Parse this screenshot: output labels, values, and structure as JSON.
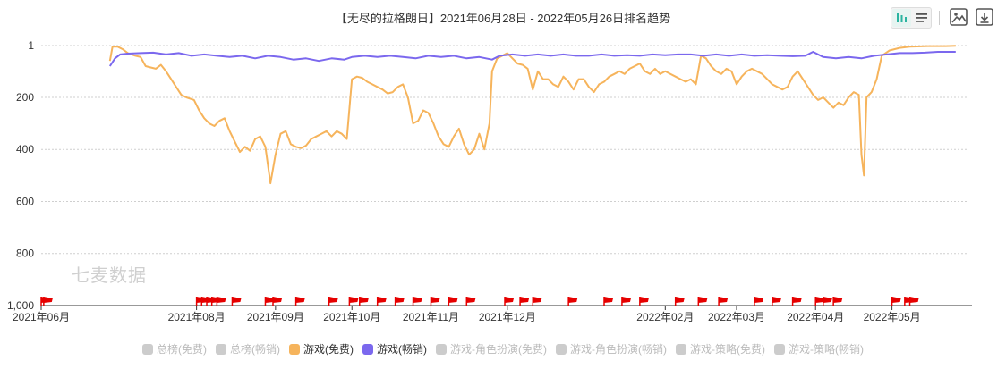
{
  "chart_data": {
    "type": "line",
    "title": "【无尽的拉格朗日】2021年06月28日 - 2022年05月26日排名趋势",
    "ylim": [
      1,
      1000
    ],
    "y_reversed": true,
    "y_ticks": [
      "1",
      "200",
      "400",
      "600",
      "800",
      "1,000"
    ],
    "y_tick_values": [
      1,
      200,
      400,
      600,
      800,
      1000
    ],
    "x_start": "2021-06-01",
    "x_end": "2022-05-31",
    "x_ticks": [
      {
        "label": "2021年06月",
        "date": "2021-06-01"
      },
      {
        "label": "2021年08月",
        "date": "2021-08-01"
      },
      {
        "label": "2021年09月",
        "date": "2021-09-01"
      },
      {
        "label": "2021年10月",
        "date": "2021-10-01"
      },
      {
        "label": "2021年11月",
        "date": "2021-11-01"
      },
      {
        "label": "2021年12月",
        "date": "2021-12-01"
      },
      {
        "label": "2022年02月",
        "date": "2022-02-01"
      },
      {
        "label": "2022年03月",
        "date": "2022-03-01"
      },
      {
        "label": "2022年04月",
        "date": "2022-04-01"
      },
      {
        "label": "2022年05月",
        "date": "2022-05-01"
      }
    ],
    "grid": true,
    "legend_position": "bottom",
    "series": [
      {
        "name": "游戏(免费)",
        "color": "#f6b45c",
        "points": [
          [
            "2021-06-28",
            60
          ],
          [
            "2021-06-29",
            5
          ],
          [
            "2021-07-01",
            5
          ],
          [
            "2021-07-03",
            15
          ],
          [
            "2021-07-05",
            30
          ],
          [
            "2021-07-08",
            40
          ],
          [
            "2021-07-10",
            45
          ],
          [
            "2021-07-12",
            80
          ],
          [
            "2021-07-14",
            85
          ],
          [
            "2021-07-16",
            90
          ],
          [
            "2021-07-18",
            75
          ],
          [
            "2021-07-20",
            100
          ],
          [
            "2021-07-22",
            130
          ],
          [
            "2021-07-24",
            160
          ],
          [
            "2021-07-26",
            190
          ],
          [
            "2021-07-28",
            200
          ],
          [
            "2021-07-31",
            210
          ],
          [
            "2021-08-02",
            250
          ],
          [
            "2021-08-04",
            280
          ],
          [
            "2021-08-06",
            300
          ],
          [
            "2021-08-08",
            310
          ],
          [
            "2021-08-10",
            290
          ],
          [
            "2021-08-12",
            280
          ],
          [
            "2021-08-14",
            330
          ],
          [
            "2021-08-16",
            370
          ],
          [
            "2021-08-18",
            410
          ],
          [
            "2021-08-20",
            390
          ],
          [
            "2021-08-22",
            405
          ],
          [
            "2021-08-24",
            360
          ],
          [
            "2021-08-26",
            350
          ],
          [
            "2021-08-28",
            390
          ],
          [
            "2021-08-30",
            530
          ],
          [
            "2021-09-01",
            420
          ],
          [
            "2021-09-03",
            340
          ],
          [
            "2021-09-05",
            330
          ],
          [
            "2021-09-07",
            380
          ],
          [
            "2021-09-09",
            390
          ],
          [
            "2021-09-11",
            395
          ],
          [
            "2021-09-13",
            385
          ],
          [
            "2021-09-15",
            360
          ],
          [
            "2021-09-17",
            350
          ],
          [
            "2021-09-19",
            340
          ],
          [
            "2021-09-21",
            330
          ],
          [
            "2021-09-23",
            350
          ],
          [
            "2021-09-25",
            330
          ],
          [
            "2021-09-27",
            340
          ],
          [
            "2021-09-29",
            360
          ],
          [
            "2021-10-01",
            130
          ],
          [
            "2021-10-03",
            120
          ],
          [
            "2021-10-05",
            125
          ],
          [
            "2021-10-07",
            140
          ],
          [
            "2021-10-09",
            150
          ],
          [
            "2021-10-11",
            160
          ],
          [
            "2021-10-13",
            170
          ],
          [
            "2021-10-15",
            185
          ],
          [
            "2021-10-17",
            180
          ],
          [
            "2021-10-19",
            160
          ],
          [
            "2021-10-21",
            150
          ],
          [
            "2021-10-23",
            200
          ],
          [
            "2021-10-25",
            300
          ],
          [
            "2021-10-27",
            290
          ],
          [
            "2021-10-29",
            250
          ],
          [
            "2021-10-31",
            260
          ],
          [
            "2021-11-02",
            300
          ],
          [
            "2021-11-04",
            350
          ],
          [
            "2021-11-06",
            380
          ],
          [
            "2021-11-08",
            390
          ],
          [
            "2021-11-10",
            350
          ],
          [
            "2021-11-12",
            320
          ],
          [
            "2021-11-14",
            380
          ],
          [
            "2021-11-16",
            420
          ],
          [
            "2021-11-18",
            400
          ],
          [
            "2021-11-20",
            340
          ],
          [
            "2021-11-22",
            400
          ],
          [
            "2021-11-24",
            300
          ],
          [
            "2021-11-25",
            100
          ],
          [
            "2021-11-27",
            50
          ],
          [
            "2021-11-29",
            40
          ],
          [
            "2021-12-01",
            30
          ],
          [
            "2021-12-03",
            50
          ],
          [
            "2021-12-05",
            70
          ],
          [
            "2021-12-07",
            75
          ],
          [
            "2021-12-09",
            90
          ],
          [
            "2021-12-11",
            170
          ],
          [
            "2021-12-13",
            100
          ],
          [
            "2021-12-15",
            130
          ],
          [
            "2021-12-17",
            130
          ],
          [
            "2021-12-19",
            150
          ],
          [
            "2021-12-21",
            160
          ],
          [
            "2021-12-23",
            120
          ],
          [
            "2021-12-25",
            140
          ],
          [
            "2021-12-27",
            170
          ],
          [
            "2021-12-29",
            130
          ],
          [
            "2021-12-31",
            130
          ],
          [
            "2022-01-02",
            160
          ],
          [
            "2022-01-04",
            180
          ],
          [
            "2022-01-06",
            150
          ],
          [
            "2022-01-08",
            140
          ],
          [
            "2022-01-10",
            120
          ],
          [
            "2022-01-12",
            110
          ],
          [
            "2022-01-14",
            100
          ],
          [
            "2022-01-16",
            110
          ],
          [
            "2022-01-18",
            90
          ],
          [
            "2022-01-20",
            80
          ],
          [
            "2022-01-22",
            70
          ],
          [
            "2022-01-24",
            100
          ],
          [
            "2022-01-26",
            110
          ],
          [
            "2022-01-28",
            90
          ],
          [
            "2022-01-30",
            110
          ],
          [
            "2022-02-01",
            100
          ],
          [
            "2022-02-03",
            110
          ],
          [
            "2022-02-05",
            120
          ],
          [
            "2022-02-07",
            130
          ],
          [
            "2022-02-09",
            140
          ],
          [
            "2022-02-11",
            130
          ],
          [
            "2022-02-13",
            150
          ],
          [
            "2022-02-15",
            40
          ],
          [
            "2022-02-17",
            50
          ],
          [
            "2022-02-19",
            80
          ],
          [
            "2022-02-21",
            100
          ],
          [
            "2022-02-23",
            110
          ],
          [
            "2022-02-25",
            90
          ],
          [
            "2022-02-27",
            100
          ],
          [
            "2022-03-01",
            150
          ],
          [
            "2022-03-03",
            120
          ],
          [
            "2022-03-05",
            100
          ],
          [
            "2022-03-07",
            90
          ],
          [
            "2022-03-09",
            100
          ],
          [
            "2022-03-11",
            110
          ],
          [
            "2022-03-13",
            130
          ],
          [
            "2022-03-15",
            150
          ],
          [
            "2022-03-17",
            160
          ],
          [
            "2022-03-19",
            170
          ],
          [
            "2022-03-21",
            160
          ],
          [
            "2022-03-23",
            120
          ],
          [
            "2022-03-25",
            100
          ],
          [
            "2022-03-27",
            130
          ],
          [
            "2022-03-29",
            160
          ],
          [
            "2022-03-31",
            190
          ],
          [
            "2022-04-02",
            210
          ],
          [
            "2022-04-04",
            200
          ],
          [
            "2022-04-06",
            220
          ],
          [
            "2022-04-08",
            240
          ],
          [
            "2022-04-10",
            220
          ],
          [
            "2022-04-12",
            230
          ],
          [
            "2022-04-14",
            200
          ],
          [
            "2022-04-16",
            180
          ],
          [
            "2022-04-18",
            190
          ],
          [
            "2022-04-19",
            420
          ],
          [
            "2022-04-20",
            500
          ],
          [
            "2022-04-21",
            200
          ],
          [
            "2022-04-23",
            180
          ],
          [
            "2022-04-25",
            130
          ],
          [
            "2022-04-27",
            40
          ],
          [
            "2022-04-30",
            20
          ],
          [
            "2022-05-04",
            10
          ],
          [
            "2022-05-08",
            5
          ],
          [
            "2022-05-15",
            3
          ],
          [
            "2022-05-22",
            3
          ],
          [
            "2022-05-26",
            2
          ]
        ]
      },
      {
        "name": "游戏(畅销)",
        "color": "#7b68ee",
        "points": [
          [
            "2021-06-28",
            80
          ],
          [
            "2021-06-30",
            50
          ],
          [
            "2021-07-02",
            35
          ],
          [
            "2021-07-05",
            32
          ],
          [
            "2021-07-10",
            30
          ],
          [
            "2021-07-15",
            28
          ],
          [
            "2021-07-20",
            35
          ],
          [
            "2021-07-25",
            30
          ],
          [
            "2021-07-30",
            40
          ],
          [
            "2021-08-04",
            35
          ],
          [
            "2021-08-09",
            40
          ],
          [
            "2021-08-14",
            45
          ],
          [
            "2021-08-19",
            40
          ],
          [
            "2021-08-24",
            50
          ],
          [
            "2021-08-29",
            40
          ],
          [
            "2021-09-03",
            45
          ],
          [
            "2021-09-08",
            55
          ],
          [
            "2021-09-13",
            50
          ],
          [
            "2021-09-18",
            60
          ],
          [
            "2021-09-23",
            50
          ],
          [
            "2021-09-28",
            55
          ],
          [
            "2021-10-01",
            45
          ],
          [
            "2021-10-06",
            40
          ],
          [
            "2021-10-11",
            45
          ],
          [
            "2021-10-16",
            40
          ],
          [
            "2021-10-21",
            45
          ],
          [
            "2021-10-26",
            50
          ],
          [
            "2021-10-31",
            40
          ],
          [
            "2021-11-05",
            45
          ],
          [
            "2021-11-10",
            40
          ],
          [
            "2021-11-15",
            50
          ],
          [
            "2021-11-20",
            45
          ],
          [
            "2021-11-25",
            55
          ],
          [
            "2021-11-28",
            40
          ],
          [
            "2021-12-03",
            35
          ],
          [
            "2021-12-08",
            40
          ],
          [
            "2021-12-13",
            35
          ],
          [
            "2021-12-18",
            40
          ],
          [
            "2021-12-23",
            35
          ],
          [
            "2021-12-28",
            40
          ],
          [
            "2022-01-02",
            40
          ],
          [
            "2022-01-07",
            35
          ],
          [
            "2022-01-12",
            40
          ],
          [
            "2022-01-17",
            38
          ],
          [
            "2022-01-22",
            40
          ],
          [
            "2022-01-27",
            35
          ],
          [
            "2022-02-01",
            38
          ],
          [
            "2022-02-06",
            35
          ],
          [
            "2022-02-11",
            35
          ],
          [
            "2022-02-16",
            40
          ],
          [
            "2022-02-21",
            35
          ],
          [
            "2022-02-26",
            40
          ],
          [
            "2022-03-03",
            35
          ],
          [
            "2022-03-08",
            40
          ],
          [
            "2022-03-13",
            38
          ],
          [
            "2022-03-18",
            40
          ],
          [
            "2022-03-23",
            42
          ],
          [
            "2022-03-28",
            40
          ],
          [
            "2022-03-31",
            25
          ],
          [
            "2022-04-04",
            45
          ],
          [
            "2022-04-09",
            50
          ],
          [
            "2022-04-14",
            45
          ],
          [
            "2022-04-19",
            50
          ],
          [
            "2022-04-24",
            40
          ],
          [
            "2022-04-29",
            35
          ],
          [
            "2022-05-04",
            30
          ],
          [
            "2022-05-09",
            30
          ],
          [
            "2022-05-14",
            28
          ],
          [
            "2022-05-19",
            25
          ],
          [
            "2022-05-26",
            25
          ]
        ]
      }
    ],
    "flags": [
      "2021-06-01",
      "2021-06-02",
      "2021-08-01",
      "2021-08-03",
      "2021-08-05",
      "2021-08-07",
      "2021-08-09",
      "2021-08-15",
      "2021-08-28",
      "2021-08-31",
      "2021-09-09",
      "2021-09-22",
      "2021-09-30",
      "2021-10-04",
      "2021-10-11",
      "2021-10-18",
      "2021-10-25",
      "2021-11-01",
      "2021-11-08",
      "2021-11-15",
      "2021-11-30",
      "2021-12-06",
      "2021-12-11",
      "2021-12-25",
      "2022-01-08",
      "2022-01-15",
      "2022-01-22",
      "2022-02-05",
      "2022-02-14",
      "2022-02-22",
      "2022-03-08",
      "2022-03-15",
      "2022-03-23",
      "2022-04-01",
      "2022-04-04",
      "2022-04-08",
      "2022-05-01",
      "2022-05-06",
      "2022-05-08"
    ],
    "flag_color": "#e60000"
  },
  "legend": [
    {
      "label": "总榜(免费)",
      "color": "#cccccc",
      "active": false
    },
    {
      "label": "总榜(畅销)",
      "color": "#cccccc",
      "active": false
    },
    {
      "label": "游戏(免费)",
      "color": "#f6b45c",
      "active": true
    },
    {
      "label": "游戏(畅销)",
      "color": "#7b68ee",
      "active": true
    },
    {
      "label": "游戏-角色扮演(免费)",
      "color": "#cccccc",
      "active": false
    },
    {
      "label": "游戏-角色扮演(畅销)",
      "color": "#cccccc",
      "active": false
    },
    {
      "label": "游戏-策略(免费)",
      "color": "#cccccc",
      "active": false
    },
    {
      "label": "游戏-策略(畅销)",
      "color": "#cccccc",
      "active": false
    }
  ],
  "watermark": "七麦数据",
  "toolbar": {
    "bar_icon": "bar-chart-icon",
    "list_icon": "list-icon",
    "image_icon": "save-image-icon",
    "download_icon": "download-icon",
    "accent": "#2ab3a0"
  }
}
